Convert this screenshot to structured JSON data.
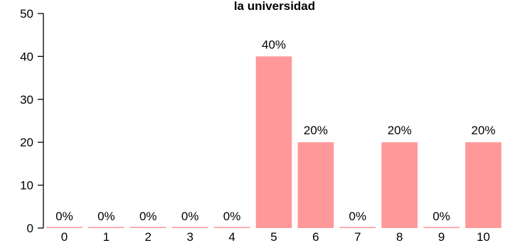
{
  "chart_data": {
    "type": "bar",
    "title": "la universidad",
    "categories": [
      "0",
      "1",
      "2",
      "3",
      "4",
      "5",
      "6",
      "7",
      "8",
      "9",
      "10"
    ],
    "values": [
      0,
      0,
      0,
      0,
      0,
      40,
      20,
      0,
      20,
      0,
      20
    ],
    "data_labels": [
      "0%",
      "0%",
      "0%",
      "0%",
      "0%",
      "40%",
      "20%",
      "0%",
      "20%",
      "0%",
      "20%"
    ],
    "yticks": [
      0,
      10,
      20,
      30,
      40,
      50
    ],
    "ylim": [
      0,
      50
    ],
    "xlabel": "",
    "ylabel": "",
    "bar_color": "#ff9999",
    "grid": false
  }
}
